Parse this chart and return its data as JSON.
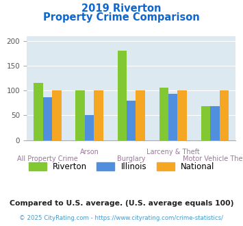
{
  "title_line1": "2019 Riverton",
  "title_line2": "Property Crime Comparison",
  "categories": [
    "All Property Crime",
    "Arson",
    "Burglary",
    "Larceny & Theft",
    "Motor Vehicle Theft"
  ],
  "riverton": [
    115,
    100,
    181,
    106,
    68
  ],
  "illinois": [
    87,
    50,
    79,
    93,
    68
  ],
  "national": [
    100,
    100,
    100,
    100,
    100
  ],
  "riverton_color": "#82c832",
  "illinois_color": "#4f8fde",
  "national_color": "#f5a623",
  "ylim": [
    0,
    210
  ],
  "yticks": [
    0,
    50,
    100,
    150,
    200
  ],
  "background_color": "#dde9f0",
  "title_color": "#1166cc",
  "xlabel_color": "#997799",
  "footnote1": "Compared to U.S. average. (U.S. average equals 100)",
  "footnote2": "© 2025 CityRating.com - https://www.cityrating.com/crime-statistics/",
  "footnote1_color": "#222222",
  "footnote2_color": "#4499cc",
  "legend_labels": [
    "Riverton",
    "Illinois",
    "National"
  ],
  "bar_width": 0.22
}
